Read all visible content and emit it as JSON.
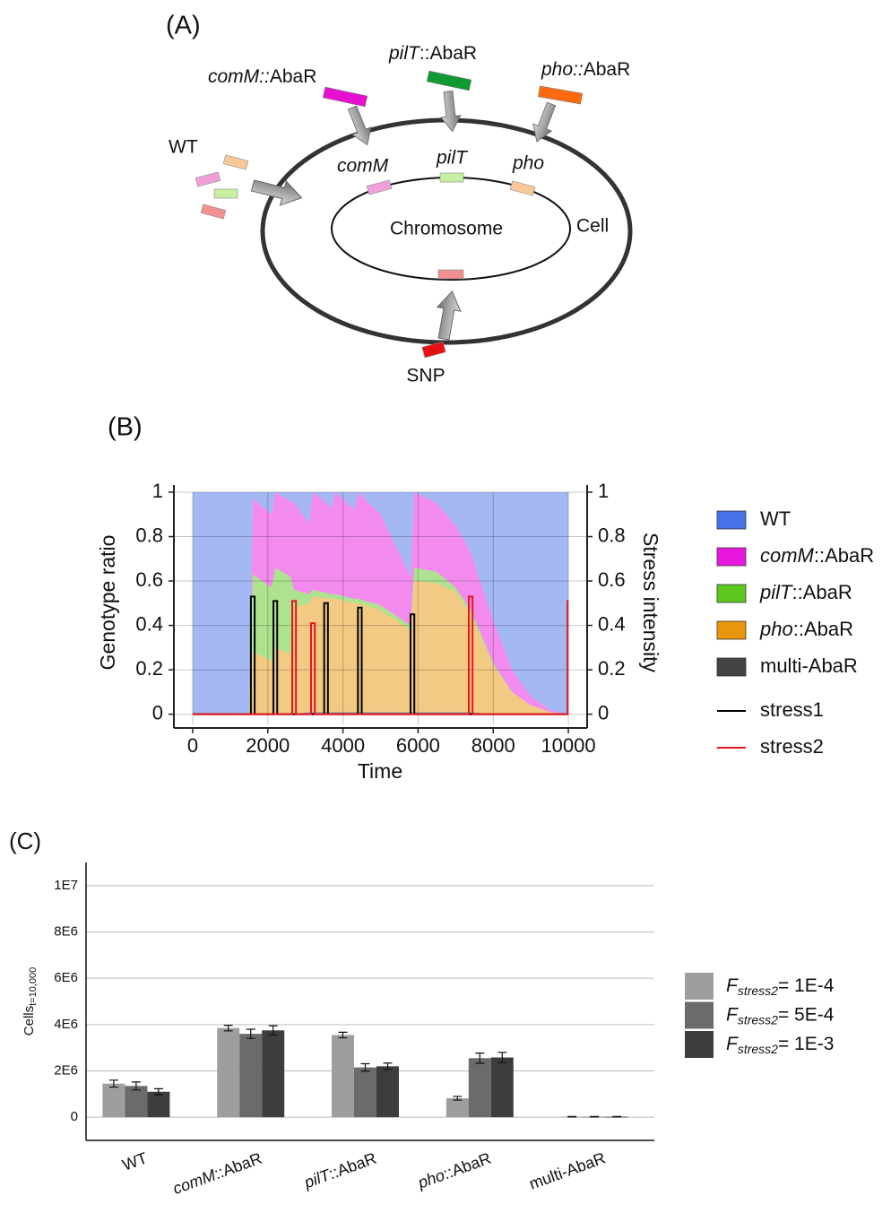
{
  "diagram": {
    "label": "(A)",
    "donors": [
      {
        "gene": "comM::",
        "suffix": "AbaR"
      },
      {
        "gene": "pilT",
        "suffix": "::AbaR"
      },
      {
        "gene": "pho::",
        "suffix": "AbaR"
      }
    ],
    "wt": "WT",
    "loci": [
      "comM",
      "pilT",
      "pho"
    ],
    "chromosome": "Chromosome",
    "cell": "Cell",
    "snp": "SNP"
  },
  "chart_data": [
    {
      "type": "area",
      "label": "(B)",
      "xlabel": "Time",
      "ylabel": "Genotype ratio",
      "y2label": "Stress intensity",
      "x": [
        0,
        1500,
        1600,
        2100,
        2200,
        2600,
        2700,
        3100,
        3200,
        3700,
        3800,
        4300,
        4400,
        5000,
        5800,
        5900,
        6500,
        7000,
        7400,
        8000,
        8500,
        9000,
        9500,
        10000
      ],
      "xlim": [
        -500,
        10500
      ],
      "xticks": [
        0,
        2000,
        4000,
        6000,
        8000,
        10000
      ],
      "ylim": [
        -0.05,
        1
      ],
      "yticks": [
        0,
        0.2,
        0.4,
        0.6,
        0.8,
        1
      ],
      "y2lim": [
        -0.05,
        1
      ],
      "y2ticks": [
        0,
        0.2,
        0.4,
        0.6,
        0.8,
        1
      ],
      "grid": true,
      "series": [
        {
          "name": "WT",
          "color": "#4a72e8",
          "values": [
            1,
            1,
            0.03,
            0.1,
            0,
            0.04,
            0.05,
            0.14,
            0,
            0.07,
            0,
            0.08,
            0,
            0.1,
            0.38,
            0,
            0.05,
            0.15,
            0.27,
            0.58,
            0.8,
            0.92,
            0.98,
            1
          ]
        },
        {
          "name": "comM::AbaR",
          "color": "#e817e0",
          "values": [
            0,
            0,
            0.34,
            0.33,
            0.34,
            0.34,
            0.39,
            0.32,
            0.44,
            0.39,
            0.46,
            0.4,
            0.48,
            0.41,
            0.22,
            0.34,
            0.31,
            0.28,
            0.26,
            0.19,
            0.1,
            0.04,
            0.01,
            0
          ]
        },
        {
          "name": "pilT::AbaR",
          "color": "#5cc81e",
          "values": [
            0,
            0,
            0.35,
            0.33,
            0.36,
            0.35,
            0.08,
            0.04,
            0.03,
            0.02,
            0.02,
            0.02,
            0.02,
            0.02,
            0.02,
            0.06,
            0.05,
            0.02,
            0.02,
            0.01,
            0,
            0,
            0,
            0
          ]
        },
        {
          "name": "pho::AbaR",
          "color": "#e8960a",
          "values": [
            0,
            0,
            0.28,
            0.24,
            0.3,
            0.27,
            0.48,
            0.49,
            0.52,
            0.51,
            0.51,
            0.49,
            0.49,
            0.46,
            0.37,
            0.59,
            0.58,
            0.54,
            0.44,
            0.22,
            0.1,
            0.04,
            0.01,
            0
          ]
        },
        {
          "name": "multi-AbaR",
          "color": "#444444",
          "values": [
            0,
            0,
            0,
            0,
            0,
            0,
            0,
            0.01,
            0.01,
            0.01,
            0.01,
            0.01,
            0.01,
            0.01,
            0.01,
            0.01,
            0.01,
            0.01,
            0.01,
            0,
            0,
            0,
            0,
            0
          ]
        },
        {
          "name": "stress1",
          "color": "#000000",
          "type": "line",
          "axis": "y2",
          "x": [
            0,
            1550,
            1550,
            1650,
            1650,
            2150,
            2150,
            2250,
            2250,
            3500,
            3500,
            3600,
            3600,
            4400,
            4400,
            4500,
            4500,
            5800,
            5800,
            5900,
            5900,
            10000
          ],
          "values": [
            0,
            0,
            0.53,
            0.53,
            0,
            0,
            0.51,
            0.51,
            0,
            0,
            0.5,
            0.5,
            0,
            0,
            0.48,
            0.48,
            0,
            0,
            0.45,
            0.45,
            0,
            0
          ]
        },
        {
          "name": "stress2",
          "color": "#e8141e",
          "type": "line",
          "axis": "y2",
          "x": [
            0,
            2650,
            2650,
            2750,
            2750,
            3150,
            3150,
            3250,
            3250,
            7350,
            7350,
            7450,
            7450,
            9980,
            9980,
            10000
          ],
          "values": [
            0,
            0,
            0.51,
            0.51,
            0,
            0,
            0.41,
            0.41,
            0,
            0,
            0.53,
            0.53,
            0,
            0,
            0.51,
            0.51
          ]
        }
      ]
    },
    {
      "type": "bar",
      "label": "(C)",
      "ylabel": "Cells",
      "ylabel_subscript": "t=10,000",
      "legend_symbol": "F",
      "legend_subscript": "stress2",
      "categories": [
        "WT",
        "comM::AbaR",
        "pilT::AbaR",
        "pho::AbaR",
        "multi-AbaR"
      ],
      "ylim": [
        -1000000,
        11000000
      ],
      "yticks": [
        0,
        {
          "value": 2000000,
          "label": "2E6"
        },
        {
          "value": 4000000,
          "label": "4E6"
        },
        {
          "value": 6000000,
          "label": "6E6"
        },
        {
          "value": 8000000,
          "label": "8E6"
        },
        {
          "value": 10000000,
          "label": "1E7"
        }
      ],
      "grid": true,
      "series": [
        {
          "name": "= 1E-4",
          "color": "#9e9e9e",
          "values": [
            1450000,
            3850000,
            3550000,
            820000,
            20000
          ],
          "errors": [
            150000,
            120000,
            120000,
            80000,
            10000
          ]
        },
        {
          "name": "= 5E-4",
          "color": "#6b6b6b",
          "values": [
            1350000,
            3600000,
            2150000,
            2550000,
            20000
          ],
          "errors": [
            170000,
            200000,
            160000,
            220000,
            10000
          ]
        },
        {
          "name": "= 1E-3",
          "color": "#3d3d3d",
          "values": [
            1100000,
            3750000,
            2200000,
            2580000,
            20000
          ],
          "errors": [
            130000,
            200000,
            140000,
            220000,
            10000
          ]
        }
      ]
    }
  ]
}
